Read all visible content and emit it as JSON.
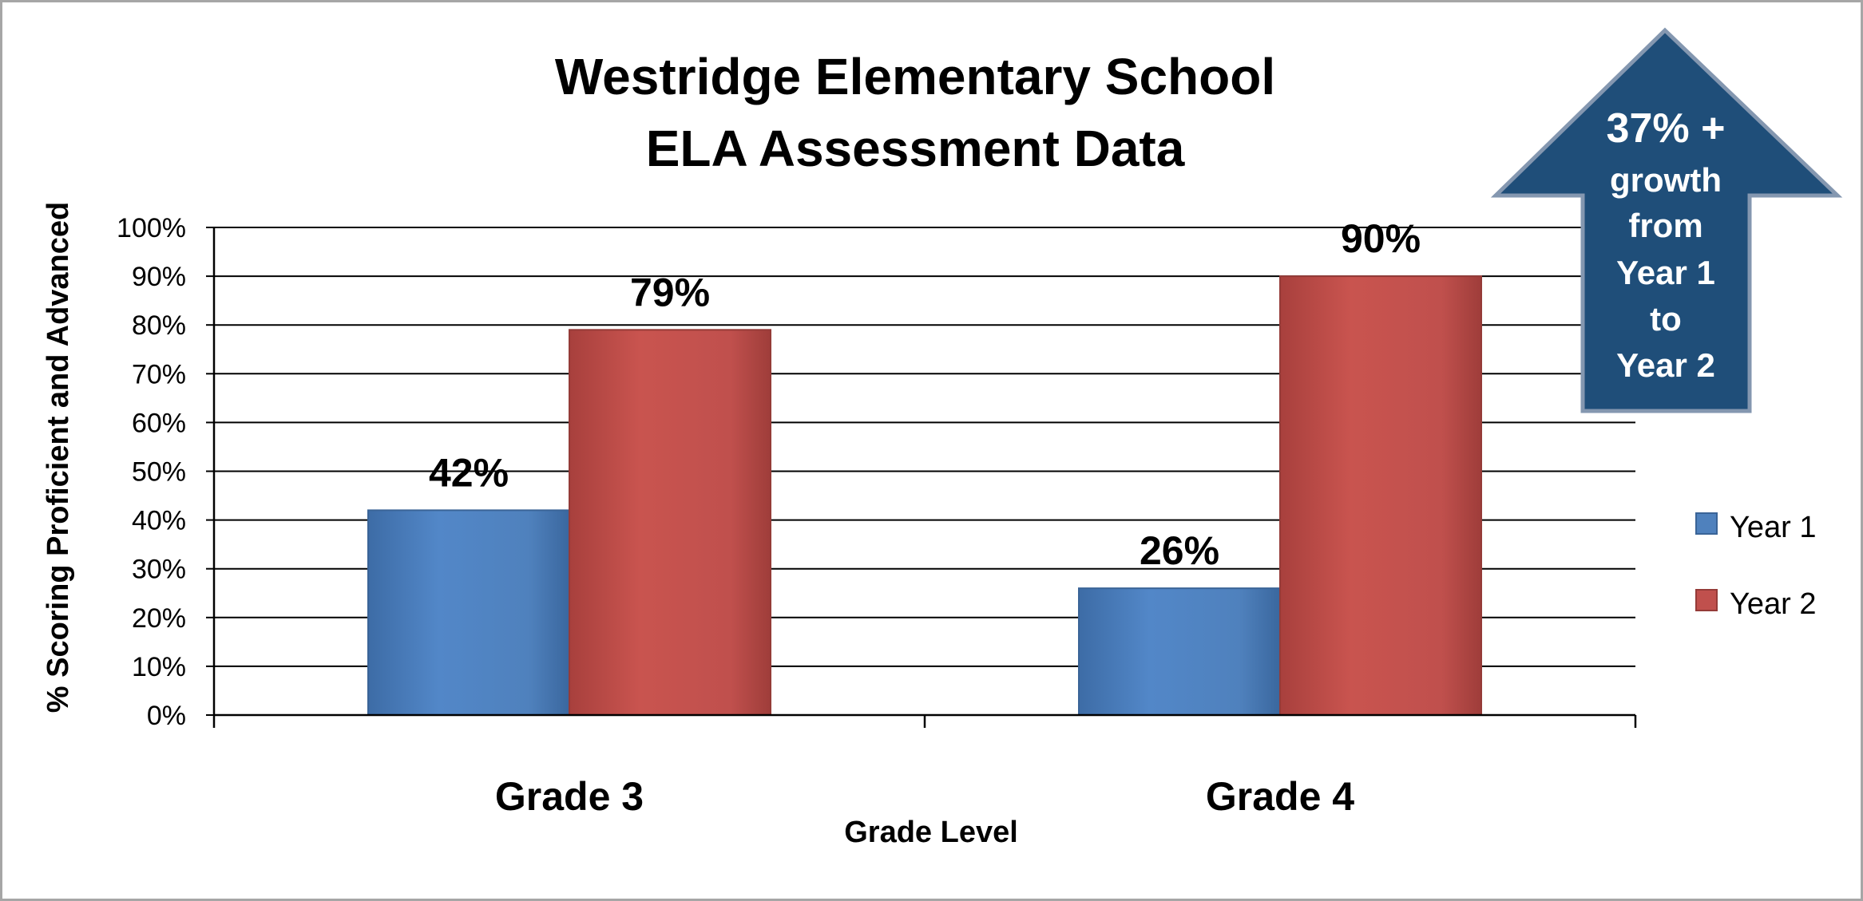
{
  "chart_data": {
    "type": "bar",
    "title": [
      "Westridge Elementary School",
      "ELA Assessment Data"
    ],
    "xlabel": "Grade Level",
    "ylabel": "% Scoring Proficient and Advanced",
    "categories": [
      "Grade 3",
      "Grade 4"
    ],
    "series": [
      {
        "name": "Year 1",
        "values": [
          42,
          26
        ],
        "labels": [
          "42%",
          "26%"
        ],
        "color": "#4f81bd"
      },
      {
        "name": "Year 2",
        "values": [
          79,
          90
        ],
        "labels": [
          "79%",
          "90%"
        ],
        "color": "#c0504d"
      }
    ],
    "ylim": [
      0,
      100
    ],
    "yticks": [
      "0%",
      "10%",
      "20%",
      "30%",
      "40%",
      "50%",
      "60%",
      "70%",
      "80%",
      "90%",
      "100%"
    ],
    "grid": true,
    "legend_position": "right",
    "annotation": {
      "shape": "up-arrow",
      "color": "#1f4e79",
      "lines": [
        "37% +",
        "growth",
        "from",
        "Year 1",
        "to",
        "Year 2"
      ]
    }
  }
}
